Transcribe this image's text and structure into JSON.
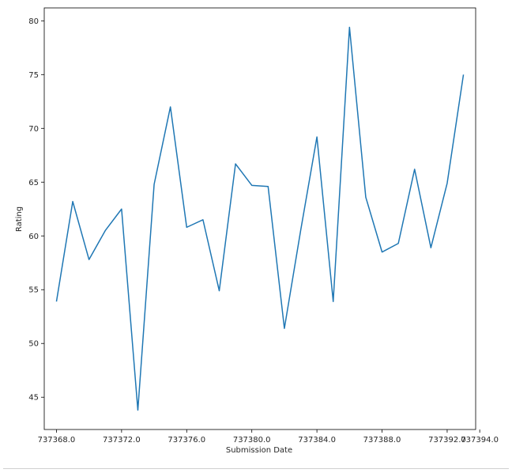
{
  "chart_data": {
    "type": "line",
    "title": "",
    "xlabel": "Submission Date",
    "ylabel": "Rating",
    "xlim": [
      737367.25,
      737393.75
    ],
    "ylim": [
      42.0,
      81.2
    ],
    "x_ticks": [
      737368.0,
      737372.0,
      737376.0,
      737380.0,
      737384.0,
      737388.0,
      737392.0,
      737394.0
    ],
    "x_tick_labels": [
      "737368.0",
      "737372.0",
      "737376.0",
      "737380.0",
      "737384.0",
      "737388.0",
      "737392.0",
      "737394.0"
    ],
    "y_ticks": [
      45,
      50,
      55,
      60,
      65,
      70,
      75,
      80
    ],
    "y_tick_labels": [
      "45",
      "50",
      "55",
      "60",
      "65",
      "70",
      "75",
      "80"
    ],
    "grid": false,
    "series": [
      {
        "color": "#1f77b4",
        "x": [
          737368,
          737369,
          737370,
          737371,
          737372,
          737373,
          737374,
          737375,
          737376,
          737377,
          737378,
          737379,
          737380,
          737381,
          737382,
          737383,
          737384,
          737385,
          737386,
          737387,
          737388,
          737389,
          737390,
          737391,
          737392,
          737393
        ],
        "values": [
          53.9,
          63.2,
          57.8,
          60.5,
          62.5,
          43.8,
          64.8,
          72.0,
          60.8,
          61.5,
          54.9,
          66.7,
          64.7,
          64.6,
          51.4,
          60.5,
          69.2,
          53.9,
          79.4,
          63.6,
          58.5,
          59.3,
          66.2,
          58.9,
          64.9,
          75.0
        ]
      }
    ]
  }
}
